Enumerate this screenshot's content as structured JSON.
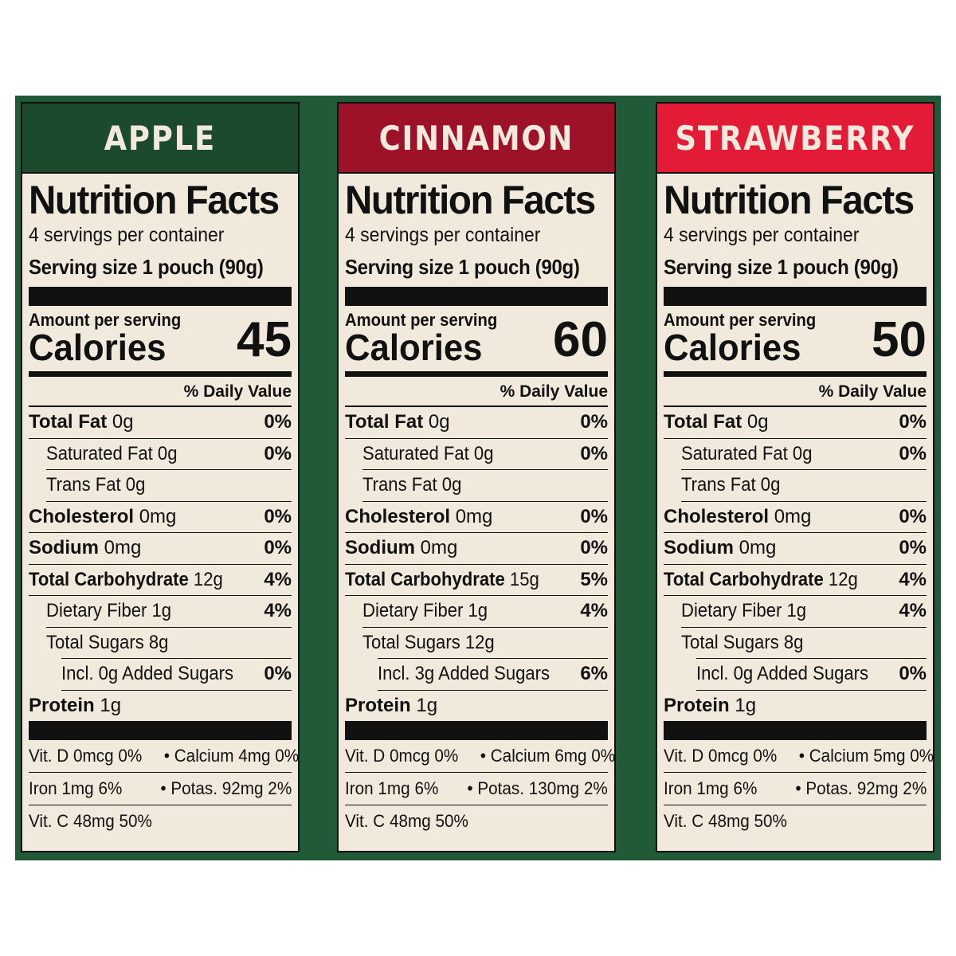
{
  "colors": {
    "background": "#215a36",
    "label_bg": "#f1eadc"
  },
  "labels": [
    {
      "flavor": "APPLE",
      "banner_color": "#1c4a2c",
      "banner_text_color": "#f1eadc",
      "title": "Nutrition Facts",
      "servings": "4 servings per container",
      "serving_size": "Serving size 1 pouch (90g)",
      "amount_per_serving": "Amount per serving",
      "calories_label": "Calories",
      "calories": "45",
      "daily_value_header": "% Daily Value",
      "total_fat_label": "Total Fat",
      "total_fat": "0g",
      "total_fat_dv": "0%",
      "sat_fat_label": "Saturated Fat 0g",
      "sat_fat_dv": "0%",
      "trans_fat_label": "Trans Fat 0g",
      "cholesterol_label": "Cholesterol",
      "cholesterol": "0mg",
      "cholesterol_dv": "0%",
      "sodium_label": "Sodium",
      "sodium": "0mg",
      "sodium_dv": "0%",
      "carb_label": "Total Carbohydrate",
      "carb": "12g",
      "carb_dv": "4%",
      "fiber_label": "Dietary Fiber 1g",
      "fiber_dv": "4%",
      "sugars_label": "Total Sugars 8g",
      "added_sugars_label": "Incl. 0g Added Sugars",
      "added_sugars_dv": "0%",
      "protein_label": "Protein",
      "protein": "1g",
      "vit_line1_left": "Vit. D 0mcg 0%",
      "vit_line1_right": "• Calcium 4mg 0%",
      "vit_line2_left": "Iron 1mg 6%",
      "vit_line2_right": "• Potas. 92mg 2%",
      "vit_line3": "Vit. C 48mg 50%"
    },
    {
      "flavor": "CINNAMON",
      "banner_color": "#9e1229",
      "banner_text_color": "#f1eadc",
      "title": "Nutrition Facts",
      "servings": "4 servings per container",
      "serving_size": "Serving size 1 pouch (90g)",
      "amount_per_serving": "Amount per serving",
      "calories_label": "Calories",
      "calories": "60",
      "daily_value_header": "% Daily Value",
      "total_fat_label": "Total Fat",
      "total_fat": "0g",
      "total_fat_dv": "0%",
      "sat_fat_label": "Saturated Fat 0g",
      "sat_fat_dv": "0%",
      "trans_fat_label": "Trans Fat 0g",
      "cholesterol_label": "Cholesterol",
      "cholesterol": "0mg",
      "cholesterol_dv": "0%",
      "sodium_label": "Sodium",
      "sodium": "0mg",
      "sodium_dv": "0%",
      "carb_label": "Total Carbohydrate",
      "carb": "15g",
      "carb_dv": "5%",
      "fiber_label": "Dietary Fiber 1g",
      "fiber_dv": "4%",
      "sugars_label": "Total Sugars 12g",
      "added_sugars_label": "Incl. 3g Added Sugars",
      "added_sugars_dv": "6%",
      "protein_label": "Protein",
      "protein": "1g",
      "vit_line1_left": "Vit. D 0mcg 0%",
      "vit_line1_right": "• Calcium 6mg 0%",
      "vit_line2_left": "Iron 1mg 6%",
      "vit_line2_right": "• Potas. 130mg 2%",
      "vit_line3": "Vit. C 48mg 50%"
    },
    {
      "flavor": "STRAWBERRY",
      "banner_color": "#e31b36",
      "banner_text_color": "#f1eadc",
      "title": "Nutrition Facts",
      "servings": "4 servings per container",
      "serving_size": "Serving size 1 pouch (90g)",
      "amount_per_serving": "Amount per serving",
      "calories_label": "Calories",
      "calories": "50",
      "daily_value_header": "% Daily Value",
      "total_fat_label": "Total Fat",
      "total_fat": "0g",
      "total_fat_dv": "0%",
      "sat_fat_label": "Saturated Fat 0g",
      "sat_fat_dv": "0%",
      "trans_fat_label": "Trans Fat 0g",
      "cholesterol_label": "Cholesterol",
      "cholesterol": "0mg",
      "cholesterol_dv": "0%",
      "sodium_label": "Sodium",
      "sodium": "0mg",
      "sodium_dv": "0%",
      "carb_label": "Total Carbohydrate",
      "carb": "12g",
      "carb_dv": "4%",
      "fiber_label": "Dietary Fiber 1g",
      "fiber_dv": "4%",
      "sugars_label": "Total Sugars 8g",
      "added_sugars_label": "Incl. 0g Added Sugars",
      "added_sugars_dv": "0%",
      "protein_label": "Protein",
      "protein": "1g",
      "vit_line1_left": "Vit. D 0mcg 0%",
      "vit_line1_right": "• Calcium 5mg 0%",
      "vit_line2_left": "Iron 1mg 6%",
      "vit_line2_right": "• Potas. 92mg 2%",
      "vit_line3": "Vit. C 48mg 50%"
    }
  ]
}
